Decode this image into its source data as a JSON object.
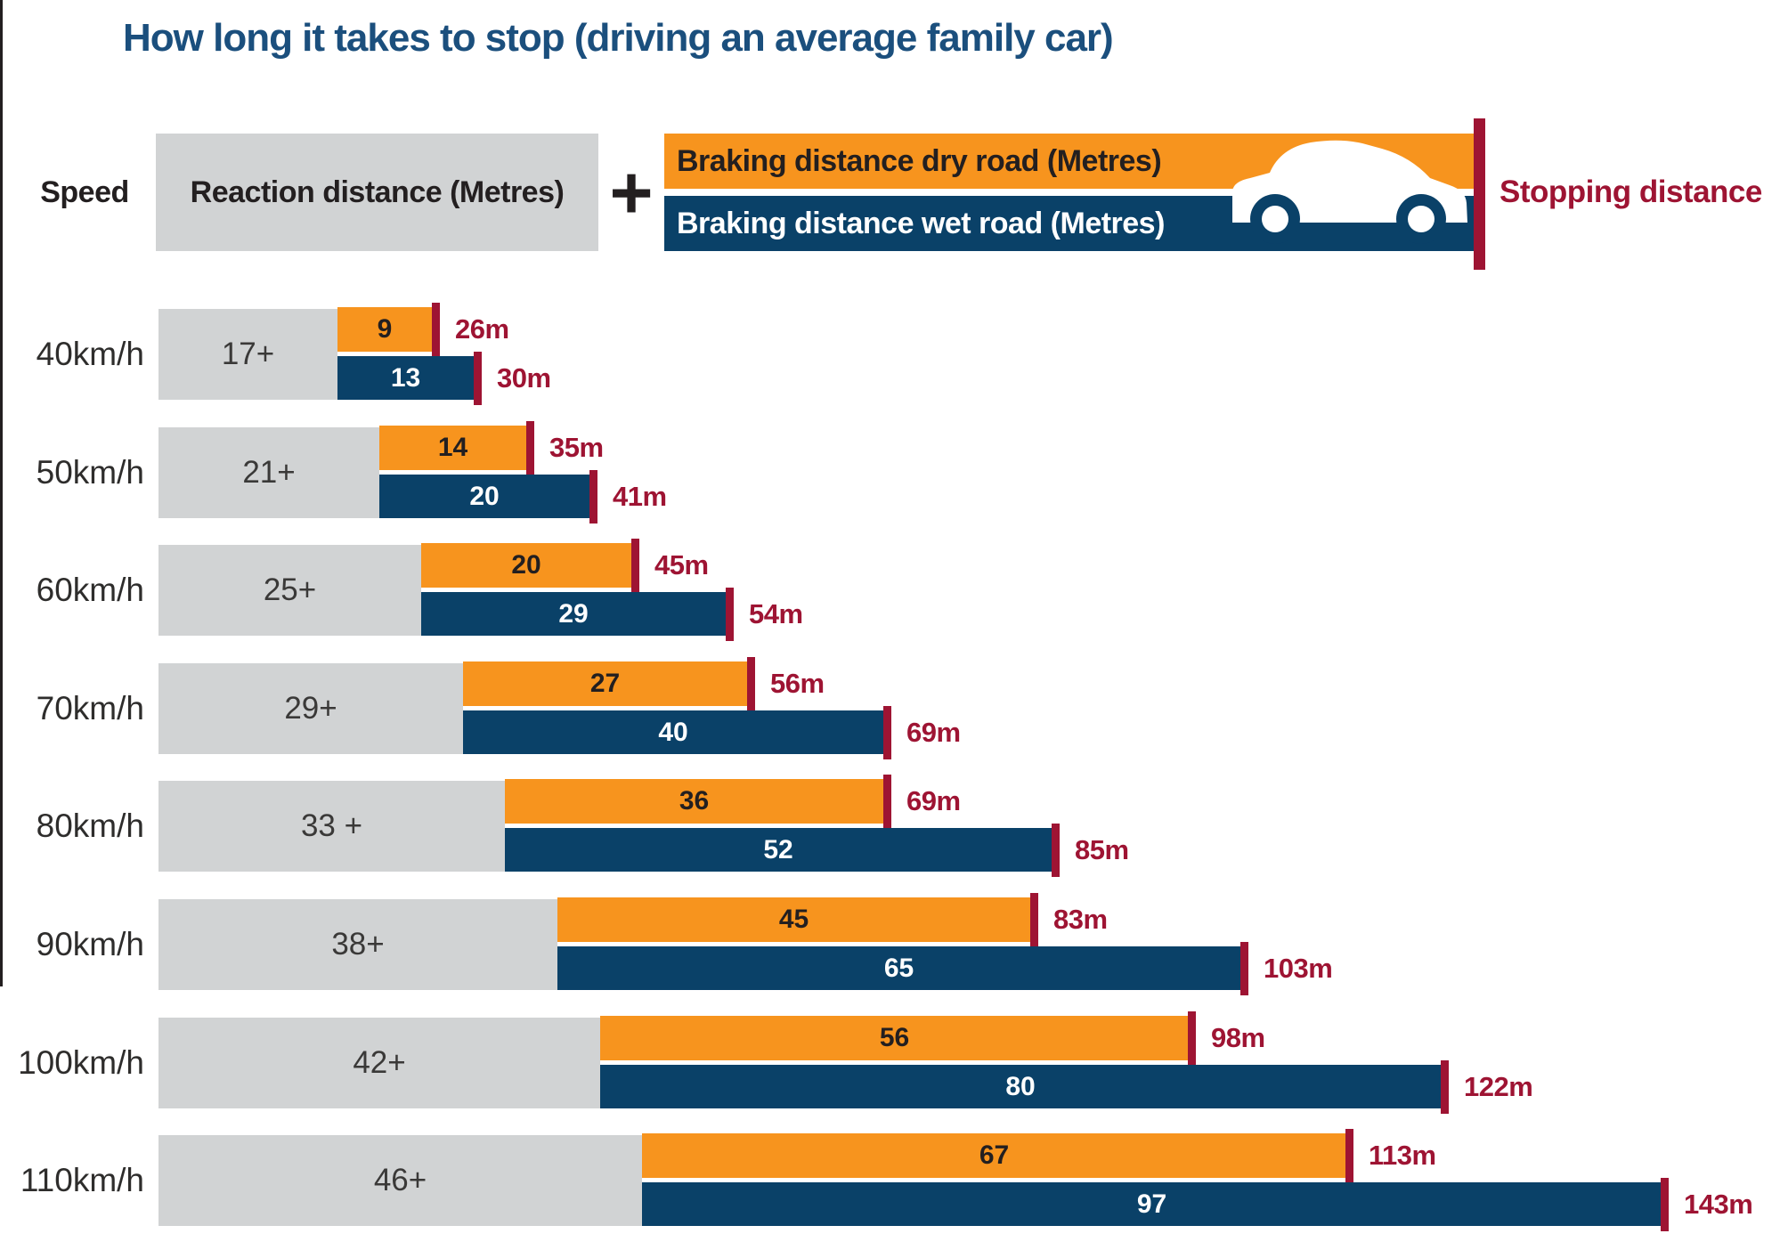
{
  "title": "How long it takes to stop (driving an average family car)",
  "legend": {
    "speed": "Speed",
    "reaction": "Reaction distance (Metres)",
    "plus": "+",
    "dry": "Braking distance dry road (Metres)",
    "wet": "Braking distance wet road (Metres)",
    "stopping": "Stopping distance",
    "car_icon": "car-icon"
  },
  "colors": {
    "title_blue": "#1b4f7d",
    "orange": "#f7941e",
    "navy": "#0a4168",
    "gray": "#d1d3d4",
    "dark_red": "#9e1433",
    "text_dark": "#231f20"
  },
  "chart_data": {
    "type": "bar",
    "orientation": "horizontal",
    "title": "How long it takes to stop (driving an average family car)",
    "categories": [
      "40km/h",
      "50km/h",
      "60km/h",
      "70km/h",
      "80km/h",
      "90km/h",
      "100km/h",
      "110km/h"
    ],
    "series": [
      {
        "name": "Reaction distance (Metres)",
        "values": [
          17,
          21,
          25,
          29,
          33,
          38,
          42,
          46
        ]
      },
      {
        "name": "Braking distance dry road (Metres)",
        "values": [
          9,
          14,
          20,
          27,
          36,
          45,
          56,
          67
        ]
      },
      {
        "name": "Braking distance wet road (Metres)",
        "values": [
          13,
          20,
          29,
          40,
          52,
          65,
          80,
          97
        ]
      },
      {
        "name": "Stopping distance dry road (Metres)",
        "values": [
          26,
          35,
          45,
          56,
          69,
          83,
          98,
          113
        ]
      },
      {
        "name": "Stopping distance wet road (Metres)",
        "values": [
          30,
          41,
          54,
          69,
          85,
          103,
          122,
          143
        ]
      }
    ],
    "x_axis_units": "metres",
    "xlim": [
      0,
      155
    ],
    "grid": false,
    "legend_position": "top",
    "bar_structure": "reaction bar is shared base; dry and wet braking bars stack after it; red tick marks total stopping distance"
  },
  "rows": [
    {
      "speed": "40km/h",
      "reaction_label": "17+",
      "reaction": 17,
      "dry_label": "9",
      "dry": 9,
      "wet_label": "13",
      "wet": 13,
      "dry_total_label": "26m",
      "dry_total": 26,
      "wet_total_label": "30m",
      "wet_total": 30
    },
    {
      "speed": "50km/h",
      "reaction_label": "21+",
      "reaction": 21,
      "dry_label": "14",
      "dry": 14,
      "wet_label": "20",
      "wet": 20,
      "dry_total_label": "35m",
      "dry_total": 35,
      "wet_total_label": "41m",
      "wet_total": 41
    },
    {
      "speed": "60km/h",
      "reaction_label": "25+",
      "reaction": 25,
      "dry_label": "20",
      "dry": 20,
      "wet_label": "29",
      "wet": 29,
      "dry_total_label": "45m",
      "dry_total": 45,
      "wet_total_label": "54m",
      "wet_total": 54
    },
    {
      "speed": "70km/h",
      "reaction_label": "29+",
      "reaction": 29,
      "dry_label": "27",
      "dry": 27,
      "wet_label": "40",
      "wet": 40,
      "dry_total_label": "56m",
      "dry_total": 56,
      "wet_total_label": "69m",
      "wet_total": 69
    },
    {
      "speed": "80km/h",
      "reaction_label": "33 +",
      "reaction": 33,
      "dry_label": "36",
      "dry": 36,
      "wet_label": "52",
      "wet": 52,
      "dry_total_label": "69m",
      "dry_total": 69,
      "wet_total_label": "85m",
      "wet_total": 85
    },
    {
      "speed": "90km/h",
      "reaction_label": "38+",
      "reaction": 38,
      "dry_label": "45",
      "dry": 45,
      "wet_label": "65",
      "wet": 65,
      "dry_total_label": "83m",
      "dry_total": 83,
      "wet_total_label": "103m",
      "wet_total": 103
    },
    {
      "speed": "100km/h",
      "reaction_label": "42+",
      "reaction": 42,
      "dry_label": "56",
      "dry": 56,
      "wet_label": "80",
      "wet": 80,
      "dry_total_label": "98m",
      "dry_total": 98,
      "wet_total_label": "122m",
      "wet_total": 122
    },
    {
      "speed": "110km/h",
      "reaction_label": "46+",
      "reaction": 46,
      "dry_label": "67",
      "dry": 67,
      "wet_label": "97",
      "wet": 97,
      "dry_total_label": "113m",
      "dry_total": 113,
      "wet_total_label": "143m",
      "wet_total": 143
    }
  ]
}
